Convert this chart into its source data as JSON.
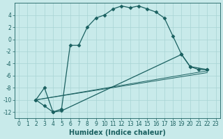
{
  "xlabel": "Humidex (Indice chaleur)",
  "background_color": "#c8eaea",
  "grid_color": "#a8d4d4",
  "line_color": "#1a6060",
  "xlim": [
    -0.5,
    23.5
  ],
  "ylim": [
    -13,
    6
  ],
  "xticks": [
    0,
    1,
    2,
    3,
    4,
    5,
    6,
    7,
    8,
    9,
    10,
    11,
    12,
    13,
    14,
    15,
    16,
    17,
    18,
    19,
    20,
    21,
    22,
    23
  ],
  "yticks": [
    -12,
    -10,
    -8,
    -6,
    -4,
    -2,
    0,
    2,
    4
  ],
  "line1_x": [
    2,
    3,
    4,
    5,
    6,
    7,
    8,
    9,
    10,
    11,
    12,
    13,
    14,
    15,
    16,
    17,
    18,
    19,
    20,
    21,
    22
  ],
  "line1_y": [
    -10,
    -8,
    -12,
    -11.5,
    -1,
    -1,
    2,
    3.5,
    4,
    5,
    5.5,
    5.2,
    5.5,
    5.0,
    4.5,
    3.5,
    0.5,
    -2.5,
    -4.5,
    -5.0,
    -5.0
  ],
  "line2_x": [
    2,
    3,
    4,
    5,
    19,
    20,
    22
  ],
  "line2_y": [
    -10,
    -11,
    -12,
    -11.8,
    -2.5,
    -4.5,
    -5.0
  ],
  "line3_x": [
    2,
    22
  ],
  "line3_y": [
    -10,
    -5.2
  ],
  "line4_x": [
    2,
    22
  ],
  "line4_y": [
    -10,
    -5.5
  ],
  "marker": "D",
  "marker_size": 2.5,
  "xlabel_fontsize": 7,
  "tick_fontsize": 5.5
}
